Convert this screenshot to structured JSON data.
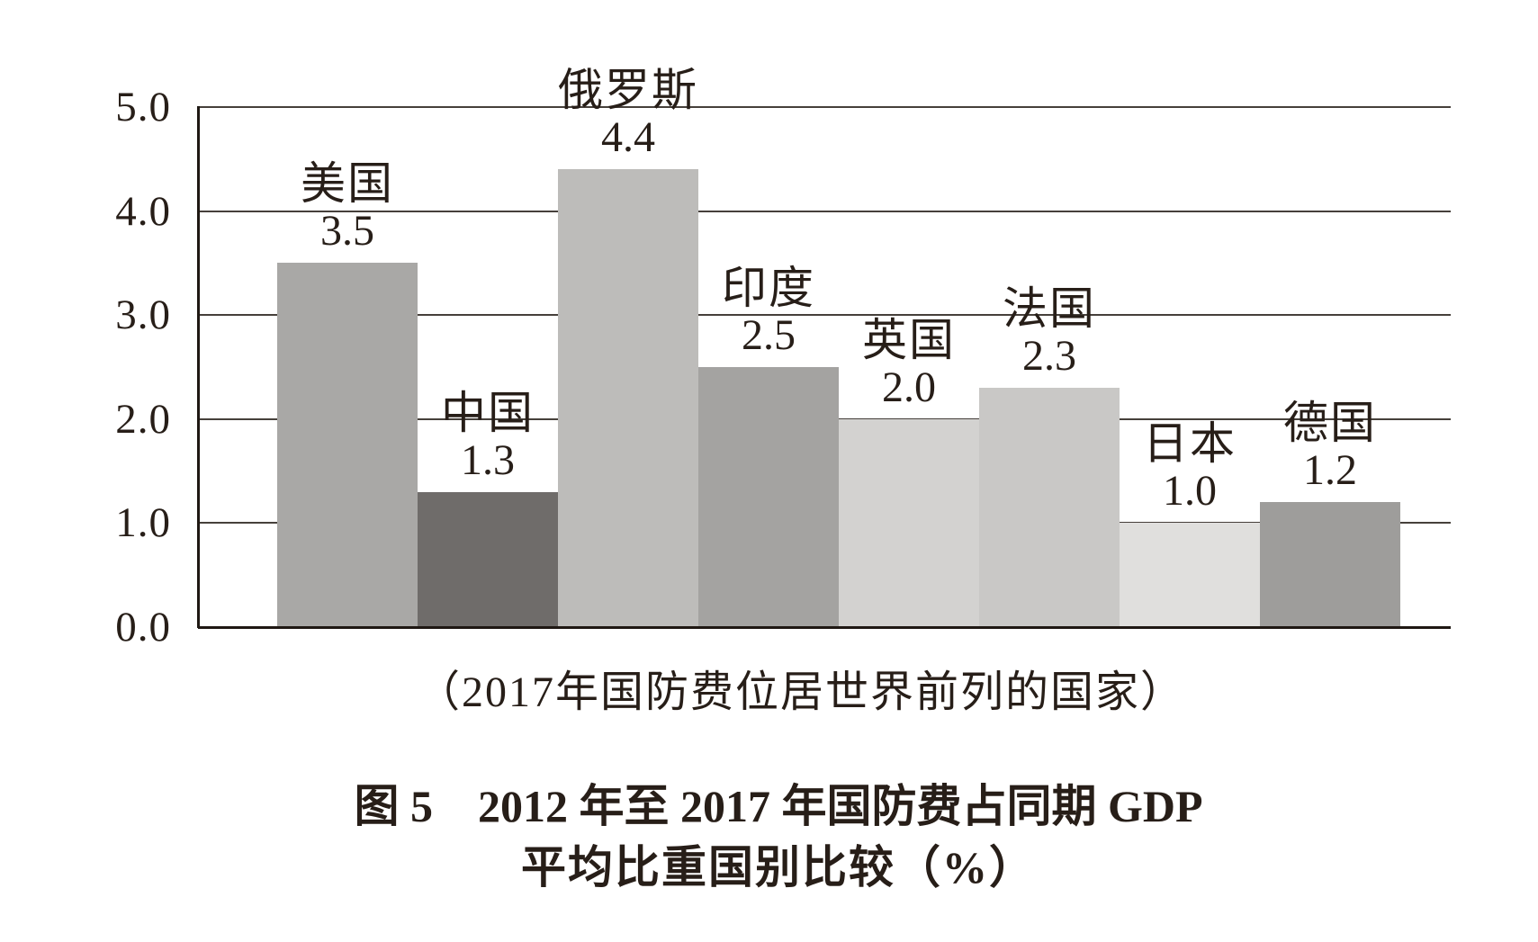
{
  "figure": {
    "caption": "（2017年国防费位居世界前列的国家）",
    "title_line1": "图 5　2012 年至 2017 年国防费占同期 GDP",
    "title_line2": "平均比重国别比较（%）"
  },
  "chart_data": {
    "type": "bar",
    "title": "图5 2012年至2017年国防费占同期GDP平均比重国别比较（%）",
    "subtitle": "（2017年国防费位居世界前列的国家）",
    "xlabel": "",
    "ylabel": "",
    "ylim": [
      0,
      5
    ],
    "y_tick_interval": 1.0,
    "y_tick_labels": [
      "5.0",
      "4.0",
      "3.0",
      "2.0",
      "1.0",
      "0.0"
    ],
    "grid": true,
    "legend": false,
    "categories": [
      "美国",
      "中国",
      "俄罗斯",
      "印度",
      "英国",
      "法国",
      "日本",
      "德国"
    ],
    "values": [
      3.5,
      1.3,
      4.4,
      2.5,
      2.0,
      2.3,
      1.0,
      1.2
    ],
    "value_labels": [
      "3.5",
      "1.3",
      "4.4",
      "2.5",
      "2.0",
      "2.3",
      "1.0",
      "1.2"
    ],
    "bar_colors": [
      "#a9a8a6",
      "#6f6c6a",
      "#bdbcba",
      "#a4a3a1",
      "#d3d2d0",
      "#c9c8c6",
      "#e0dfdd",
      "#9e9d9b"
    ]
  },
  "colors": {
    "background": "#ffffff",
    "text": "#271e18",
    "gridline": "#46403b",
    "axis": "#1f1813"
  }
}
